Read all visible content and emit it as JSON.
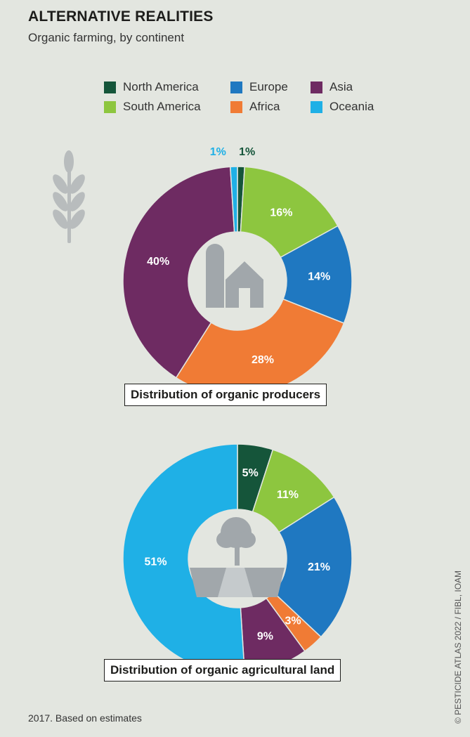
{
  "header": {
    "title": "ALTERNATIVE REALITIES",
    "subtitle": "Organic farming, by continent"
  },
  "legend": [
    {
      "name": "North America",
      "color": "#15553a"
    },
    {
      "name": "Europe",
      "color": "#1f78c1"
    },
    {
      "name": "Asia",
      "color": "#6e2b62"
    },
    {
      "name": "South America",
      "color": "#8dc63f"
    },
    {
      "name": "Africa",
      "color": "#f07b35"
    },
    {
      "name": "Oceania",
      "color": "#1fb0e6"
    }
  ],
  "chart_data": [
    {
      "type": "pie",
      "title": "Distribution of organic producers",
      "categories": [
        "North America",
        "South America",
        "Europe",
        "Africa",
        "Asia",
        "Oceania"
      ],
      "values": [
        1,
        16,
        14,
        28,
        40,
        1
      ],
      "labels": [
        "1%",
        "16%",
        "14%",
        "28%",
        "40%",
        "1%"
      ],
      "center_icon": "farm-silo-barn-icon"
    },
    {
      "type": "pie",
      "title": "Distribution of organic agricultural land",
      "categories": [
        "North America",
        "South America",
        "Europe",
        "Africa",
        "Asia",
        "Oceania"
      ],
      "values": [
        5,
        11,
        21,
        3,
        9,
        51
      ],
      "labels": [
        "5%",
        "11%",
        "21%",
        "3%",
        "9%",
        "51%"
      ],
      "center_icon": "tree-field-icon"
    }
  ],
  "decor": {
    "wheat_icon": "wheat-icon"
  },
  "footer": {
    "note": "2017. Based on estimates",
    "credit": "© PESTICIDE ATLAS 2022 / FIBL, IOAM"
  }
}
